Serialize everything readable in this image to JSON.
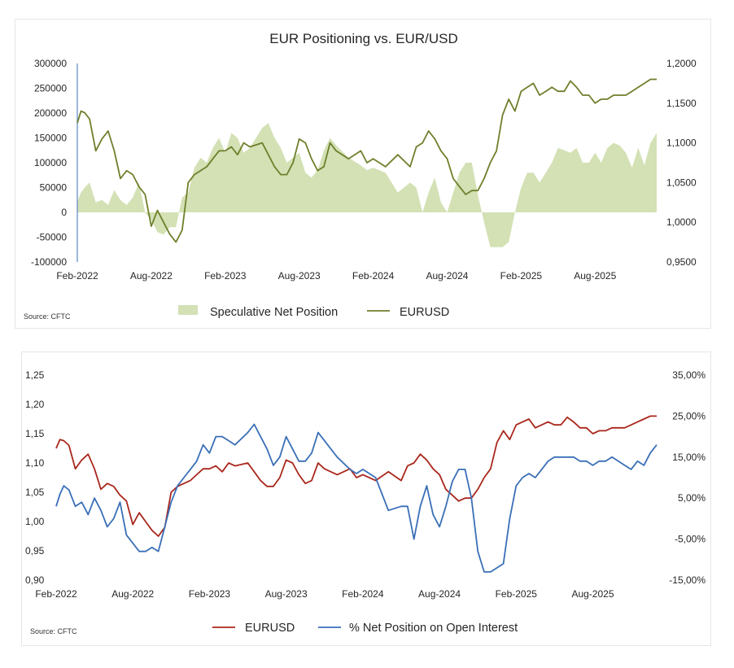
{
  "chart_data": [
    {
      "type": "area+line",
      "title": "EUR Positioning vs. EUR/USD",
      "source": "Source: CFTC",
      "x_tick_labels": [
        "Feb-2022",
        "Aug-2022",
        "Feb-2023",
        "Aug-2023",
        "Feb-2024",
        "Aug-2024",
        "Feb-2025",
        "Aug-2025"
      ],
      "y_left": {
        "ticks": [
          "300000",
          "250000",
          "200000",
          "150000",
          "100000",
          "50000",
          "0",
          "-50000",
          "-100000"
        ],
        "range": [
          -100000,
          300000
        ]
      },
      "y_right": {
        "ticks": [
          "1,2000",
          "1,1500",
          "1,1000",
          "1,0500",
          "1,0000",
          "0,9500"
        ],
        "range": [
          0.95,
          1.2
        ]
      },
      "legend": [
        "Speculative Net Position",
        "EURUSD"
      ],
      "colors": {
        "area": "#d3e1b5",
        "line": "#6f7f2b"
      },
      "x_months": [
        0,
        0.3,
        0.6,
        1,
        1.5,
        2,
        2.5,
        3,
        3.5,
        4,
        4.5,
        5,
        5.5,
        6,
        6.5,
        7,
        7.5,
        8,
        8.5,
        9,
        9.5,
        10,
        10.5,
        11,
        11.5,
        12,
        12.5,
        13,
        13.5,
        14,
        15,
        15.5,
        16,
        16.5,
        17,
        17.5,
        18,
        18.5,
        19,
        19.5,
        20,
        20.5,
        21,
        22,
        23,
        23.5,
        24,
        25,
        26,
        27,
        27.5,
        28,
        28.5,
        29,
        29.5,
        30,
        30.5,
        31,
        31.5,
        32,
        32.5,
        33,
        33.5,
        34,
        34.5,
        35,
        35.5,
        36,
        36.5,
        37,
        37.5,
        38,
        38.5,
        39,
        39.5,
        40,
        40.5,
        41,
        41.5,
        42,
        42.5,
        43,
        43.5,
        44,
        44.5,
        45,
        45.5,
        46,
        46.5,
        47
      ],
      "net_position": [
        22000,
        40000,
        50000,
        60000,
        20000,
        25000,
        15000,
        45000,
        25000,
        15000,
        30000,
        60000,
        0,
        -15000,
        -40000,
        -45000,
        -30000,
        -30000,
        30000,
        40000,
        90000,
        110000,
        100000,
        130000,
        150000,
        120000,
        160000,
        150000,
        120000,
        130000,
        170000,
        180000,
        150000,
        130000,
        100000,
        110000,
        120000,
        80000,
        70000,
        85000,
        125000,
        150000,
        135000,
        110000,
        95000,
        85000,
        90000,
        80000,
        40000,
        60000,
        50000,
        0,
        40000,
        70000,
        20000,
        0,
        40000,
        80000,
        100000,
        100000,
        35000,
        -20000,
        -70000,
        -70000,
        -70000,
        -60000,
        0,
        50000,
        80000,
        80000,
        60000,
        80000,
        100000,
        130000,
        125000,
        120000,
        130000,
        100000,
        100000,
        120000,
        100000,
        130000,
        140000,
        135000,
        120000,
        90000,
        130000,
        95000,
        140000,
        160000
      ],
      "eurusd": [
        1.125,
        1.14,
        1.138,
        1.13,
        1.09,
        1.105,
        1.115,
        1.09,
        1.055,
        1.065,
        1.06,
        1.045,
        1.035,
        0.995,
        1.015,
        1.0,
        0.985,
        0.975,
        0.99,
        1.05,
        1.06,
        1.065,
        1.07,
        1.08,
        1.09,
        1.09,
        1.095,
        1.085,
        1.1,
        1.095,
        1.1,
        1.085,
        1.07,
        1.06,
        1.06,
        1.075,
        1.105,
        1.1,
        1.08,
        1.065,
        1.07,
        1.1,
        1.09,
        1.08,
        1.09,
        1.075,
        1.08,
        1.07,
        1.085,
        1.07,
        1.095,
        1.1,
        1.115,
        1.105,
        1.09,
        1.08,
        1.055,
        1.045,
        1.035,
        1.04,
        1.04,
        1.055,
        1.075,
        1.09,
        1.135,
        1.155,
        1.14,
        1.165,
        1.17,
        1.175,
        1.16,
        1.165,
        1.17,
        1.165,
        1.165,
        1.178,
        1.17,
        1.16,
        1.16,
        1.15,
        1.155,
        1.155,
        1.16,
        1.16,
        1.16,
        1.165,
        1.17,
        1.175,
        1.18,
        1.18
      ]
    },
    {
      "type": "line",
      "source": "Source: CFTC",
      "x_tick_labels": [
        "Feb-2022",
        "Aug-2022",
        "Feb-2023",
        "Aug-2023",
        "Feb-2024",
        "Aug-2024",
        "Feb-2025",
        "Aug-2025"
      ],
      "y_left": {
        "ticks": [
          "1,25",
          "1,20",
          "1,15",
          "1,10",
          "1,05",
          "1,00",
          "0,95",
          "0,90"
        ],
        "range": [
          0.9,
          1.25
        ]
      },
      "y_right": {
        "ticks": [
          "35,00%",
          "25,00%",
          "15,00%",
          "5,00%",
          "-5,00%",
          "-15,00%"
        ],
        "range": [
          -15,
          35
        ]
      },
      "legend": [
        "EURUSD",
        "% Net Position on Open Interest"
      ],
      "colors": {
        "eurusd": "#a9271c",
        "net_pct": "#3a6fb7"
      },
      "x_months": [
        0,
        0.3,
        0.6,
        1,
        1.5,
        2,
        2.5,
        3,
        3.5,
        4,
        4.5,
        5,
        5.5,
        6,
        6.5,
        7,
        7.5,
        8,
        8.5,
        9,
        9.5,
        10,
        10.5,
        11,
        11.5,
        12,
        12.5,
        13,
        13.5,
        14,
        15,
        15.5,
        16,
        16.5,
        17,
        17.5,
        18,
        18.5,
        19,
        19.5,
        20,
        20.5,
        21,
        22,
        23,
        23.5,
        24,
        25,
        26,
        27,
        27.5,
        28,
        28.5,
        29,
        29.5,
        30,
        30.5,
        31,
        31.5,
        32,
        32.5,
        33,
        33.5,
        34,
        34.5,
        35,
        35.5,
        36,
        36.5,
        37,
        37.5,
        38,
        38.5,
        39,
        39.5,
        40,
        40.5,
        41,
        41.5,
        42,
        42.5,
        43,
        43.5,
        44,
        44.5,
        45,
        45.5,
        46,
        46.5,
        47
      ],
      "eurusd": [
        1.125,
        1.14,
        1.138,
        1.13,
        1.09,
        1.105,
        1.115,
        1.09,
        1.055,
        1.065,
        1.06,
        1.045,
        1.035,
        0.995,
        1.015,
        1.0,
        0.985,
        0.975,
        0.99,
        1.05,
        1.06,
        1.065,
        1.07,
        1.08,
        1.09,
        1.09,
        1.095,
        1.085,
        1.1,
        1.095,
        1.1,
        1.085,
        1.07,
        1.06,
        1.06,
        1.075,
        1.105,
        1.1,
        1.08,
        1.065,
        1.07,
        1.1,
        1.09,
        1.08,
        1.09,
        1.075,
        1.08,
        1.07,
        1.085,
        1.07,
        1.095,
        1.1,
        1.115,
        1.105,
        1.09,
        1.08,
        1.055,
        1.045,
        1.035,
        1.04,
        1.04,
        1.055,
        1.075,
        1.09,
        1.135,
        1.155,
        1.14,
        1.165,
        1.17,
        1.175,
        1.16,
        1.165,
        1.17,
        1.165,
        1.165,
        1.178,
        1.17,
        1.16,
        1.16,
        1.15,
        1.155,
        1.155,
        1.16,
        1.16,
        1.16,
        1.165,
        1.17,
        1.175,
        1.18,
        1.18
      ],
      "net_pct": [
        3,
        6,
        8,
        7,
        3,
        4,
        1,
        5,
        2,
        -2,
        0,
        4,
        -4,
        -6,
        -8,
        -8,
        -7,
        -8,
        -2,
        4,
        8,
        10,
        12,
        14,
        18,
        16,
        20,
        20,
        19,
        18,
        21,
        23,
        20,
        17,
        13,
        15,
        20,
        17,
        14,
        14,
        16,
        21,
        19,
        15,
        12,
        11,
        12,
        10,
        2,
        3,
        3,
        -5,
        3,
        8,
        1,
        -2,
        3,
        9,
        12,
        12,
        5,
        -8,
        -13,
        -13,
        -12,
        -11,
        0,
        8,
        10,
        11,
        10,
        12,
        14,
        15,
        15,
        15,
        15,
        14,
        14,
        13,
        14,
        14,
        15,
        14,
        13,
        12,
        14,
        13,
        16,
        18
      ]
    }
  ]
}
